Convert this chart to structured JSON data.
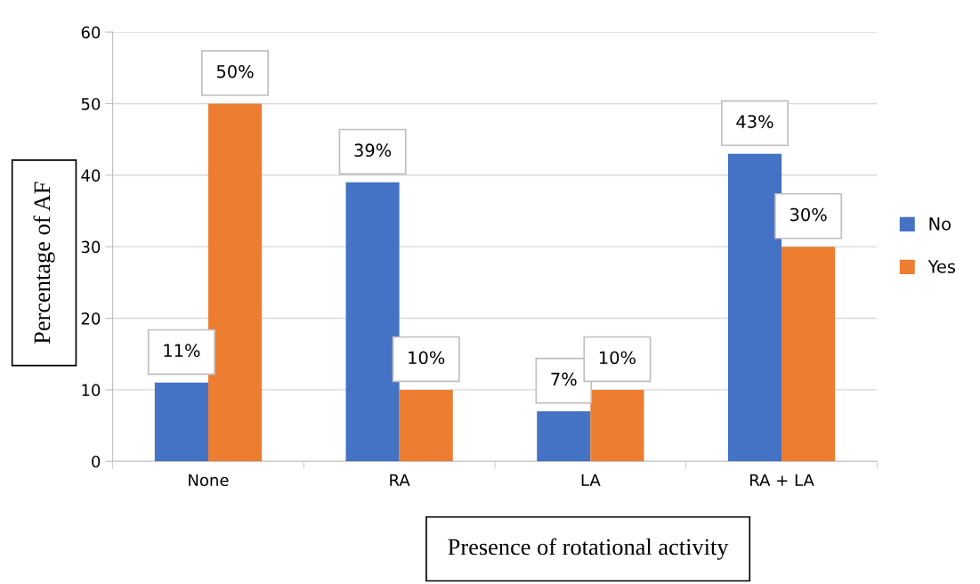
{
  "chart_data": {
    "type": "bar",
    "xlabel": "Presence of rotational activity",
    "ylabel": "Percentage of AF",
    "categories": [
      "None",
      "RA",
      "LA",
      "RA + LA"
    ],
    "series": [
      {
        "name": "No",
        "color": "#4472c4",
        "values": [
          11,
          39,
          7,
          43
        ],
        "value_labels": [
          "11%",
          "39%",
          "7%",
          "43%"
        ]
      },
      {
        "name": "Yes",
        "color": "#ed7d31",
        "values": [
          50,
          10,
          10,
          30
        ],
        "value_labels": [
          "50%",
          "10%",
          "10%",
          "30%"
        ]
      }
    ],
    "ylim": [
      0,
      60
    ],
    "yticks": [
      0,
      10,
      20,
      30,
      40,
      50,
      60
    ],
    "grid": "y",
    "legend": "right"
  }
}
